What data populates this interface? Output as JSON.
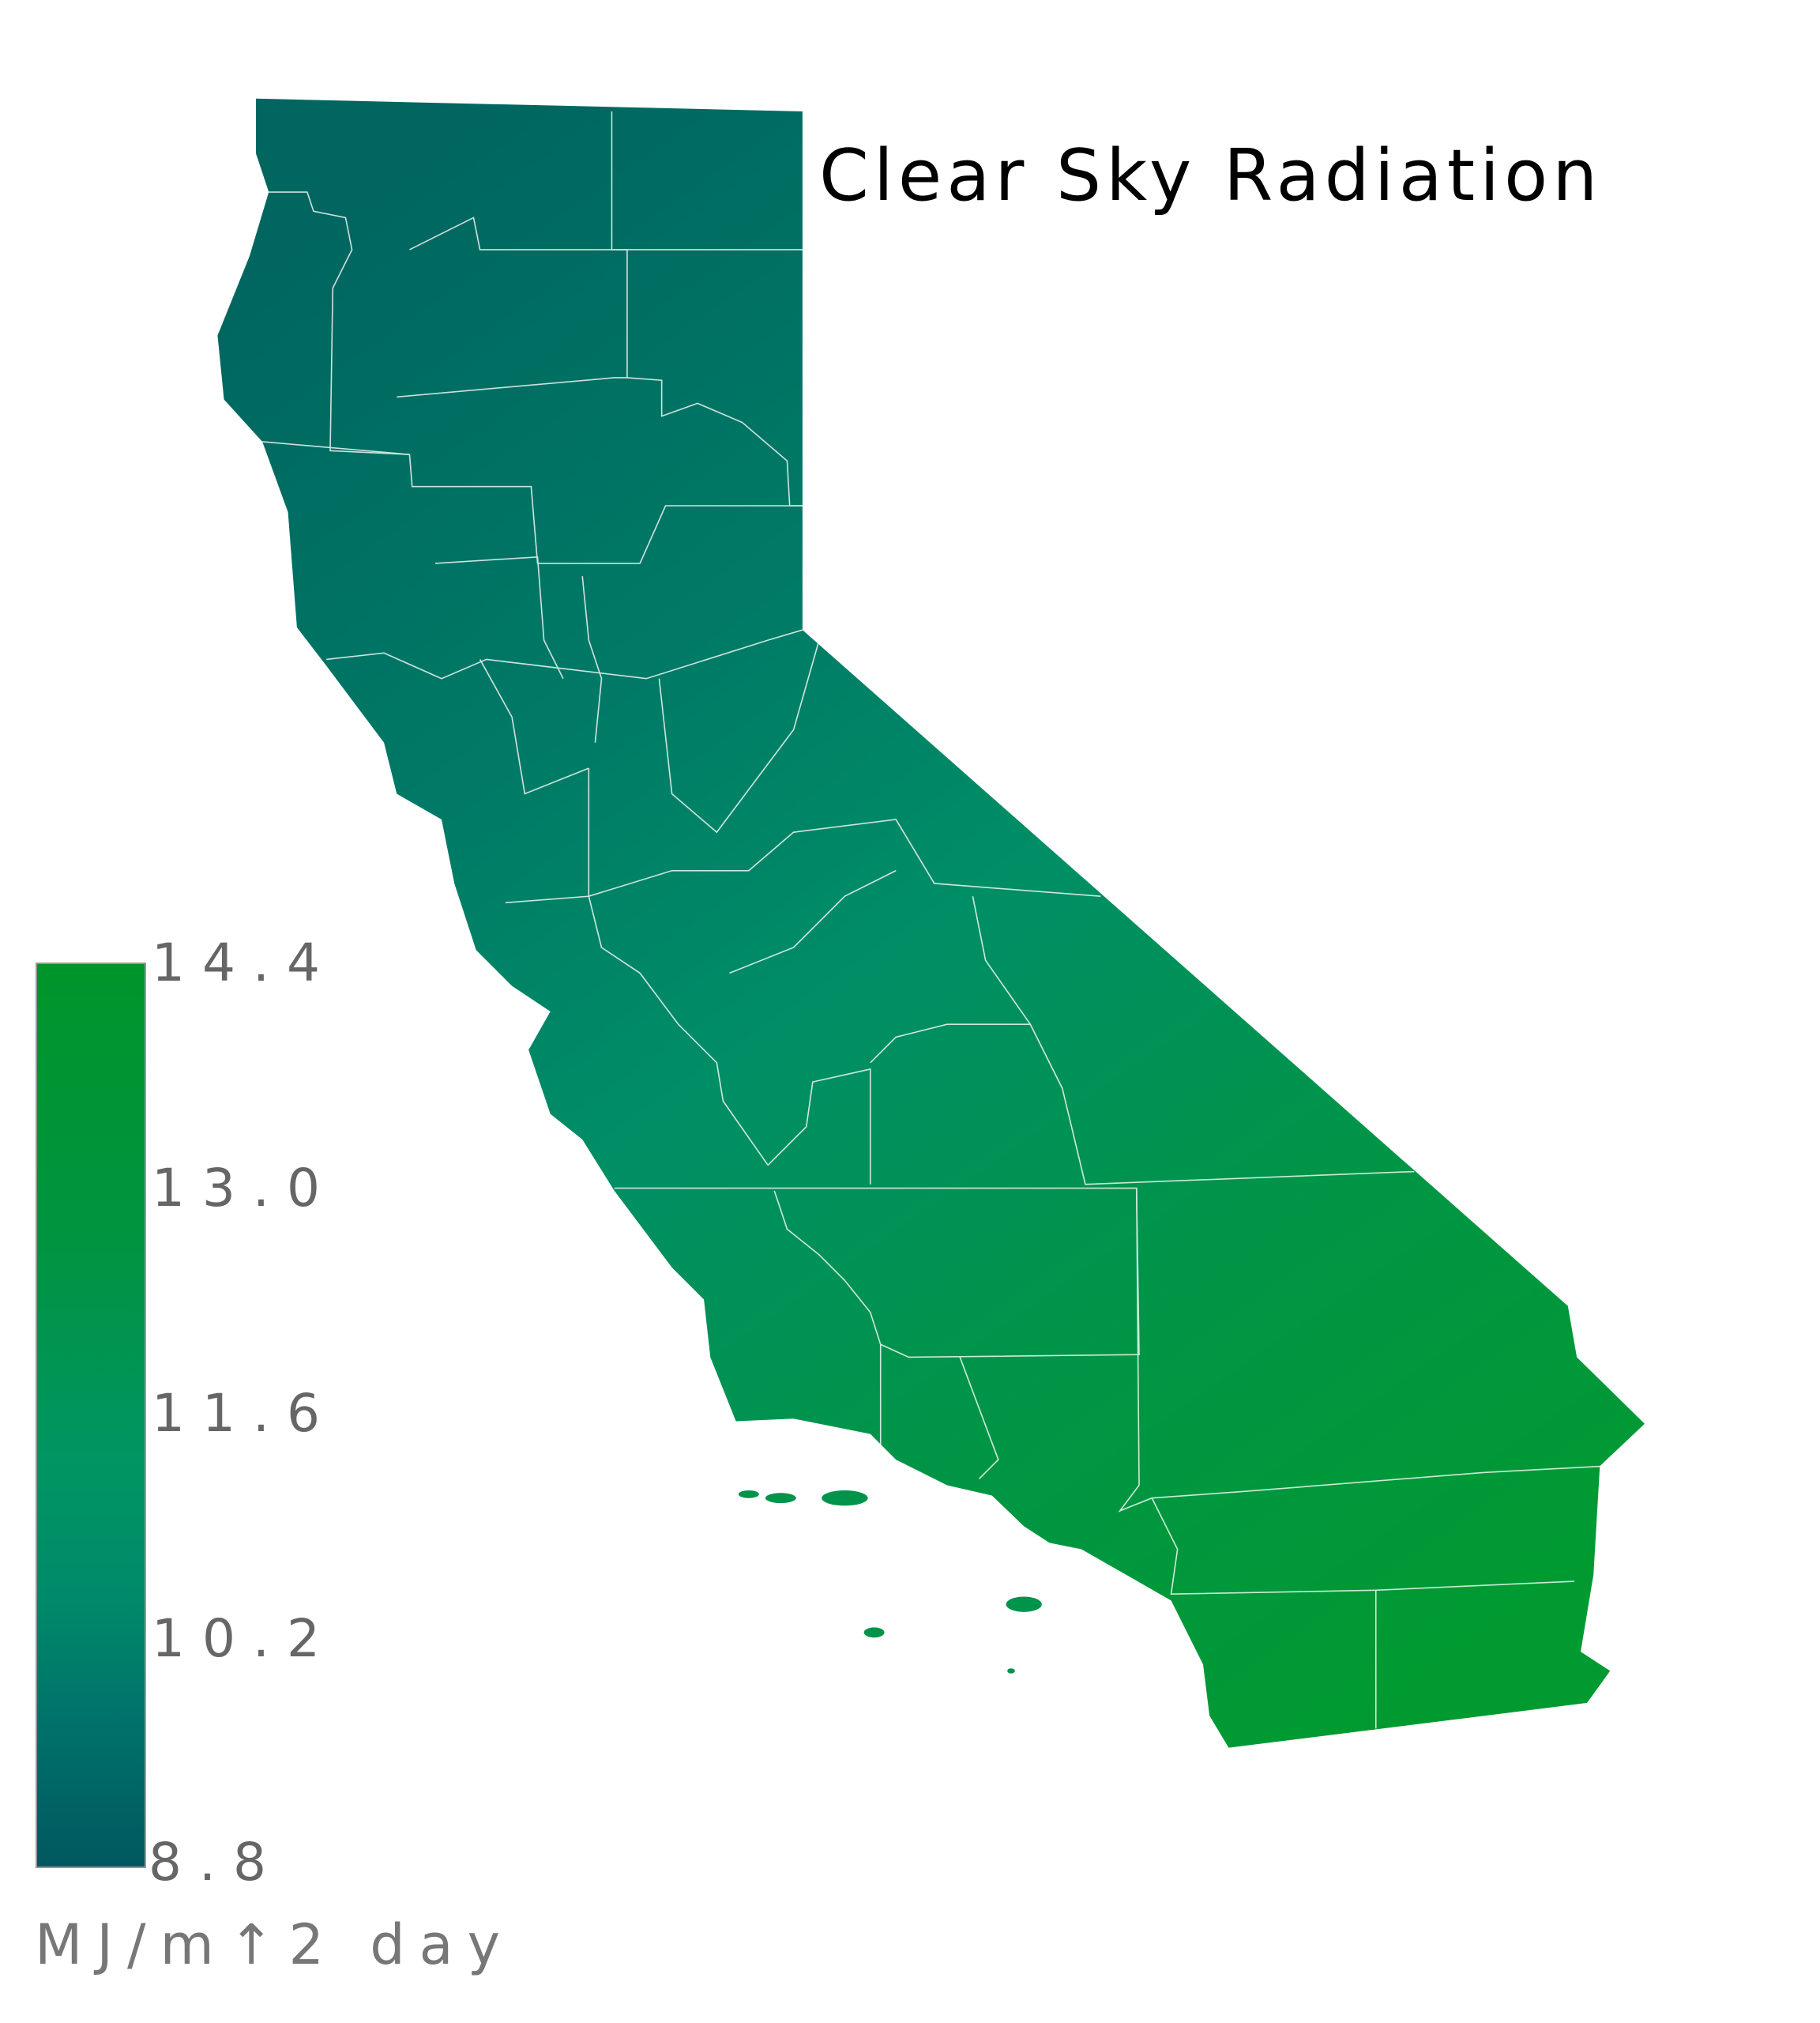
{
  "title": "Clear Sky Radiation",
  "legend": {
    "ticks": [
      "14.4",
      "13.0",
      "11.6",
      "10.2",
      "8.8"
    ],
    "unit": "MJ/m↑2 day",
    "min": 8.8,
    "max": 14.4,
    "colors": {
      "low": "#00585f",
      "mid": "#009562",
      "high": "#00952a"
    }
  },
  "map": {
    "region": "California counties",
    "boundary_color": "#ffffff",
    "north_color": "#00665f",
    "south_color": "#009a35"
  }
}
